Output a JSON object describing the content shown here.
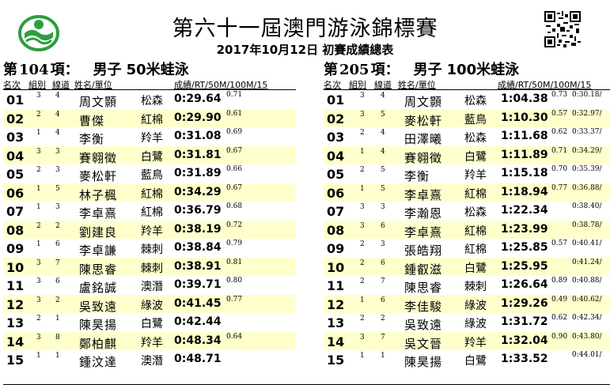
{
  "header": {
    "title": "第六十一屆澳門游泳錦標賽",
    "subtitle": "2017年10月12日 初賽成績總表"
  },
  "colors": {
    "alt_row": "#ffffcc",
    "logo_green": "#2e9e3e"
  },
  "events": [
    {
      "di": "第",
      "number": "104",
      "xiang": "項",
      "colon": "：",
      "gender": "男子",
      "name": "50米蛙泳",
      "columns": {
        "rank": "名次",
        "heat": "組別",
        "lane": "線道",
        "name": "姓名/單位",
        "result": "成績/RT/50M/100M/15"
      },
      "rows": [
        {
          "rank": "01",
          "heat": "3",
          "lane": "4",
          "name": "周文顥",
          "club": "松森",
          "time": "0:29.64",
          "rt": "0.71",
          "split": ""
        },
        {
          "rank": "02",
          "heat": "2",
          "lane": "4",
          "name": "曹傑",
          "club": "紅棉",
          "time": "0:29.90",
          "rt": "0.61",
          "split": ""
        },
        {
          "rank": "03",
          "heat": "1",
          "lane": "4",
          "name": "李衡",
          "club": "羚羊",
          "time": "0:31.08",
          "rt": "0.69",
          "split": ""
        },
        {
          "rank": "04",
          "heat": "3",
          "lane": "3",
          "name": "賽翱徵",
          "club": "白鷺",
          "time": "0:31.81",
          "rt": "0.67",
          "split": ""
        },
        {
          "rank": "05",
          "heat": "2",
          "lane": "3",
          "name": "麥松軒",
          "club": "藍鳥",
          "time": "0:31.89",
          "rt": "0.66",
          "split": ""
        },
        {
          "rank": "06",
          "heat": "1",
          "lane": "5",
          "name": "林子楓",
          "club": "紅棉",
          "time": "0:34.29",
          "rt": "0.67",
          "split": ""
        },
        {
          "rank": "07",
          "heat": "1",
          "lane": "3",
          "name": "李卓熹",
          "club": "紅棉",
          "time": "0:36.79",
          "rt": "0.68",
          "split": ""
        },
        {
          "rank": "08",
          "heat": "2",
          "lane": "2",
          "name": "劉建良",
          "club": "羚羊",
          "time": "0:38.19",
          "rt": "0.72",
          "split": ""
        },
        {
          "rank": "09",
          "heat": "1",
          "lane": "6",
          "name": "李卓謙",
          "club": "棘刺",
          "time": "0:38.84",
          "rt": "0.79",
          "split": ""
        },
        {
          "rank": "10",
          "heat": "3",
          "lane": "7",
          "name": "陳思睿",
          "club": "棘刺",
          "time": "0:38.91",
          "rt": "0.81",
          "split": ""
        },
        {
          "rank": "11",
          "heat": "3",
          "lane": "6",
          "name": "盧銘誠",
          "club": "澳潛",
          "time": "0:39.71",
          "rt": "0.80",
          "split": ""
        },
        {
          "rank": "12",
          "heat": "3",
          "lane": "2",
          "name": "吳致遠",
          "club": "綠波",
          "time": "0:41.45",
          "rt": "0.77",
          "split": ""
        },
        {
          "rank": "13",
          "heat": "2",
          "lane": "1",
          "name": "陳昊揚",
          "club": "白鷺",
          "time": "0:42.44",
          "rt": "",
          "split": ""
        },
        {
          "rank": "14",
          "heat": "3",
          "lane": "8",
          "name": "鄭柏麒",
          "club": "羚羊",
          "time": "0:48.34",
          "rt": "0.64",
          "split": ""
        },
        {
          "rank": "15",
          "heat": "1",
          "lane": "1",
          "name": "鍾汶達",
          "club": "澳潛",
          "time": "0:48.71",
          "rt": "",
          "split": ""
        }
      ]
    },
    {
      "di": "第",
      "number": "205",
      "xiang": "項",
      "colon": "：",
      "gender": "男子",
      "name": "100米蛙泳",
      "columns": {
        "rank": "名次",
        "heat": "組別",
        "lane": "線道",
        "name": "姓名/單位",
        "result": "成績/RT/50M/100M/15"
      },
      "rows": [
        {
          "rank": "01",
          "heat": "3",
          "lane": "4",
          "name": "周文顥",
          "club": "松森",
          "time": "1:04.38",
          "rt": "0.73",
          "split": "0:30.18/"
        },
        {
          "rank": "02",
          "heat": "3",
          "lane": "5",
          "name": "麥松軒",
          "club": "藍鳥",
          "time": "1:10.30",
          "rt": "0.57",
          "split": "0:32.97/"
        },
        {
          "rank": "03",
          "heat": "2",
          "lane": "4",
          "name": "田澤曦",
          "club": "松森",
          "time": "1:11.68",
          "rt": "0.62",
          "split": "0:33.37/"
        },
        {
          "rank": "04",
          "heat": "1",
          "lane": "4",
          "name": "賽翱徵",
          "club": "白鷺",
          "time": "1:11.89",
          "rt": "0.71",
          "split": "0:34.29/"
        },
        {
          "rank": "05",
          "heat": "2",
          "lane": "5",
          "name": "李衡",
          "club": "羚羊",
          "time": "1:15.18",
          "rt": "0.70",
          "split": "0:35.39/"
        },
        {
          "rank": "06",
          "heat": "1",
          "lane": "5",
          "name": "李卓熹",
          "club": "紅棉",
          "time": "1:18.94",
          "rt": "0.77",
          "split": "0:36.88/"
        },
        {
          "rank": "07",
          "heat": "3",
          "lane": "3",
          "name": "李瀚恩",
          "club": "松森",
          "time": "1:22.34",
          "rt": "",
          "split": "0:38.40/"
        },
        {
          "rank": "08",
          "heat": "3",
          "lane": "6",
          "name": "李卓熹",
          "club": "紅棉",
          "time": "1:23.99",
          "rt": "",
          "split": "0:38.78/"
        },
        {
          "rank": "09",
          "heat": "2",
          "lane": "3",
          "name": "張皓翔",
          "club": "紅棉",
          "time": "1:25.85",
          "rt": "0.57",
          "split": "0:40.41/"
        },
        {
          "rank": "10",
          "heat": "2",
          "lane": "6",
          "name": "鍾叡滋",
          "club": "白鷺",
          "time": "1:25.95",
          "rt": "",
          "split": "0:41.24/"
        },
        {
          "rank": "11",
          "heat": "2",
          "lane": "7",
          "name": "陳思睿",
          "club": "棘刺",
          "time": "1:26.64",
          "rt": "0.89",
          "split": "0:40.88/"
        },
        {
          "rank": "12",
          "heat": "1",
          "lane": "6",
          "name": "李佳駿",
          "club": "綠波",
          "time": "1:29.26",
          "rt": "0.49",
          "split": "0:40.62/"
        },
        {
          "rank": "13",
          "heat": "2",
          "lane": "2",
          "name": "吳致遠",
          "club": "綠波",
          "time": "1:31.72",
          "rt": "0.62",
          "split": "0:42.34/"
        },
        {
          "rank": "14",
          "heat": "3",
          "lane": "7",
          "name": "吳文晉",
          "club": "羚羊",
          "time": "1:32.04",
          "rt": "0.90",
          "split": "0:43.80/"
        },
        {
          "rank": "15",
          "heat": "1",
          "lane": "1",
          "name": "陳昊揚",
          "club": "白鷺",
          "time": "1:33.52",
          "rt": "",
          "split": "0:44.01/"
        }
      ]
    }
  ]
}
